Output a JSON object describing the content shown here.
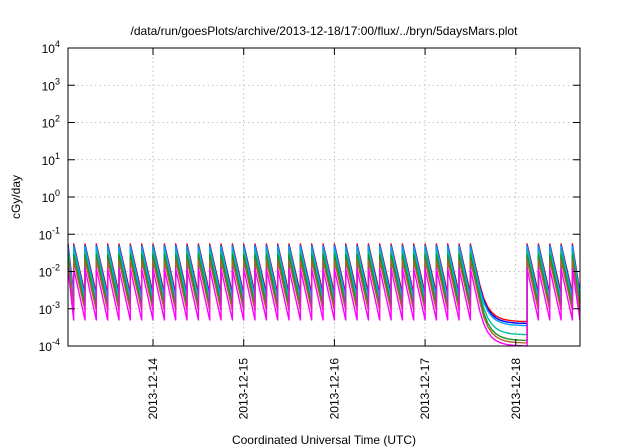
{
  "chart_data": {
    "type": "line",
    "title": "/data/run/goesPlots/archive/2013-12-18/17:00/flux/../bryn/5daysMars.plot",
    "xlabel": "Coordinated Universal Time (UTC)",
    "ylabel": "cGy/day",
    "x_start": "2013-12-13 01:30",
    "x_end": "2013-12-18 17:00",
    "xticks": [
      {
        "at": "2013-12-14 00:00",
        "label": "2013-12-14"
      },
      {
        "at": "2013-12-15 00:00",
        "label": "2013-12-15"
      },
      {
        "at": "2013-12-16 00:00",
        "label": "2013-12-16"
      },
      {
        "at": "2013-12-17 00:00",
        "label": "2013-12-17"
      },
      {
        "at": "2013-12-18 00:00",
        "label": "2013-12-18"
      }
    ],
    "y_scale": "log",
    "ylim": [
      0.0001,
      10000
    ],
    "yticks": [
      {
        "base": "10",
        "exp": "-4"
      },
      {
        "base": "10",
        "exp": "-3"
      },
      {
        "base": "10",
        "exp": "-2"
      },
      {
        "base": "10",
        "exp": "-1"
      },
      {
        "base": "10",
        "exp": "0"
      },
      {
        "base": "10",
        "exp": "1"
      },
      {
        "base": "10",
        "exp": "2"
      },
      {
        "base": "10",
        "exp": "3"
      },
      {
        "base": "10",
        "exp": "4"
      }
    ],
    "grid": true,
    "sawtooth_period_hours": 3,
    "dropout": {
      "start": "2013-12-17 14:30",
      "recovery": "2013-12-18 03:00"
    },
    "series": [
      {
        "color": "#ff0000",
        "peak": 0.055,
        "trough": 0.0026,
        "dropout_level": 0.00045
      },
      {
        "color": "#0000ff",
        "peak": 0.05,
        "trough": 0.0022,
        "dropout_level": 0.0004
      },
      {
        "color": "#00a0ff",
        "peak": 0.048,
        "trough": 0.002,
        "dropout_level": 0.00035
      },
      {
        "color": "#00c0a0",
        "peak": 0.036,
        "trough": 0.0016,
        "dropout_level": 0.0002
      },
      {
        "color": "#209020",
        "peak": 0.028,
        "trough": 0.0012,
        "dropout_level": 0.00014
      },
      {
        "color": "#b06030",
        "peak": 0.02,
        "trough": 0.0009,
        "dropout_level": 0.00012
      },
      {
        "color": "#ff00ff",
        "peak": 0.012,
        "trough": 0.0005,
        "dropout_level": 0.0001
      }
    ]
  }
}
